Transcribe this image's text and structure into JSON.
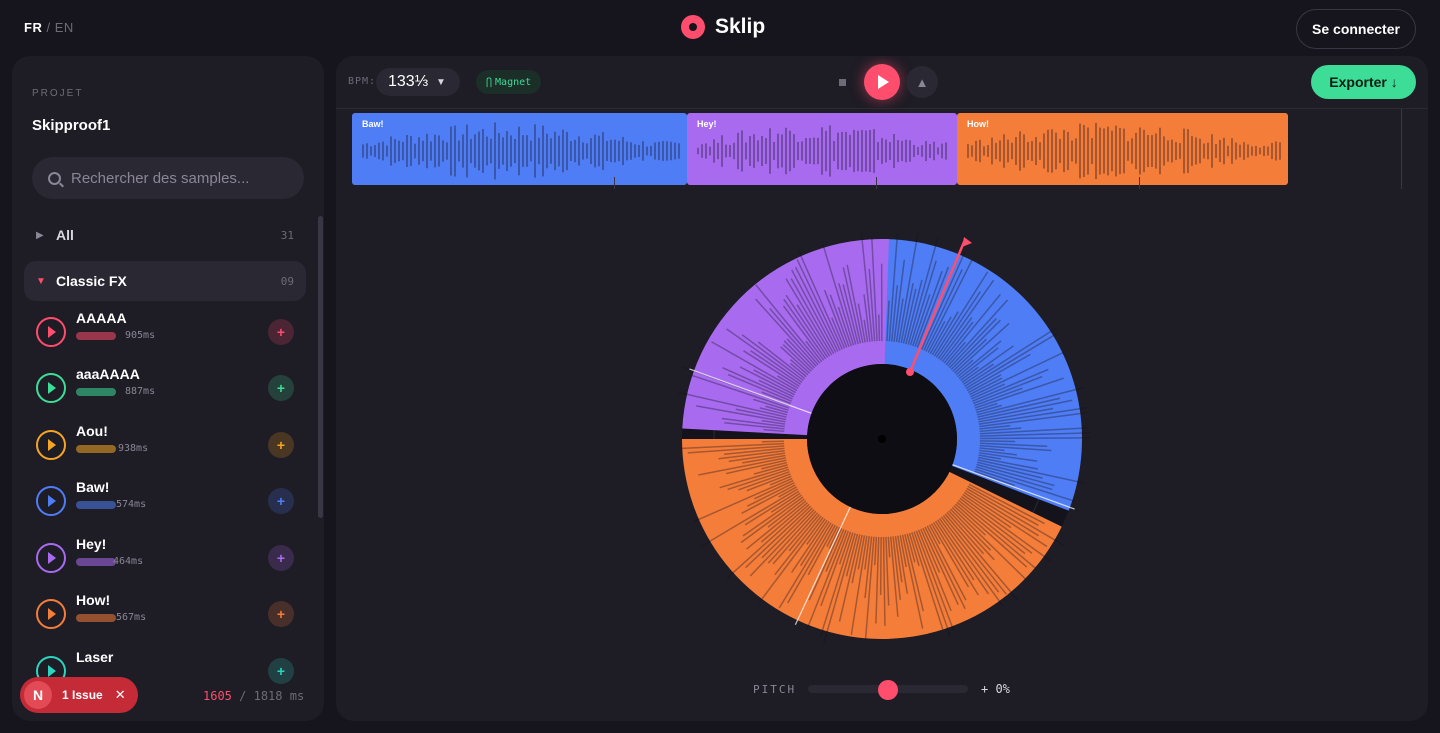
{
  "header": {
    "lang_active": "FR",
    "lang_separator": "/",
    "lang_other": "EN",
    "app_name": "Sklip",
    "login_label": "Se connecter"
  },
  "sidebar": {
    "project_label": "PROJET",
    "project_name": "Skipproof1",
    "search_placeholder": "Rechercher des samples...",
    "categories": [
      {
        "name": "All",
        "count": "31",
        "expanded": false
      },
      {
        "name": "Classic FX",
        "count": "09",
        "expanded": true
      }
    ],
    "samples": [
      {
        "name": "AAAAA",
        "duration": "905ms",
        "color": "#ff4d6d"
      },
      {
        "name": "aaaAAAA",
        "duration": "887ms",
        "color": "#3ddc97"
      },
      {
        "name": "Aou!",
        "duration": "938ms",
        "color": "#f5a524"
      },
      {
        "name": "Baw!",
        "duration": "574ms",
        "color": "#4f7df5"
      },
      {
        "name": "Hey!",
        "duration": "464ms",
        "color": "#a86bf0"
      },
      {
        "name": "How!",
        "duration": "567ms",
        "color": "#f57d3a"
      },
      {
        "name": "Laser",
        "duration": "",
        "color": "#2dd4bf"
      }
    ],
    "add_symbol": "+",
    "issue": {
      "avatar_letter": "N",
      "label": "1 Issue",
      "close": "✕"
    },
    "timecode": {
      "current": "1605",
      "rest": "/ 1818 ms"
    }
  },
  "toolbar": {
    "bpm_label": "BPM:",
    "bpm_value": "133⅓",
    "magnet_label": "Magnet",
    "export_label": "Exporter ↓"
  },
  "timeline": {
    "clips": [
      {
        "label": "Baw!",
        "color": "#4f7df5"
      },
      {
        "label": "Hey!",
        "color": "#a86bf0"
      },
      {
        "label": "How!",
        "color": "#f57d3a"
      }
    ]
  },
  "pitch": {
    "label": "PITCH",
    "value_text": "+ 0%",
    "value": 0
  },
  "colors": {
    "accent": "#ff4d6d",
    "export": "#3ddc97"
  },
  "icons": [
    "search-icon",
    "play-icon",
    "stop-icon",
    "metronome-icon",
    "magnet-icon",
    "close-icon",
    "chevron-down-icon",
    "add-icon"
  ]
}
